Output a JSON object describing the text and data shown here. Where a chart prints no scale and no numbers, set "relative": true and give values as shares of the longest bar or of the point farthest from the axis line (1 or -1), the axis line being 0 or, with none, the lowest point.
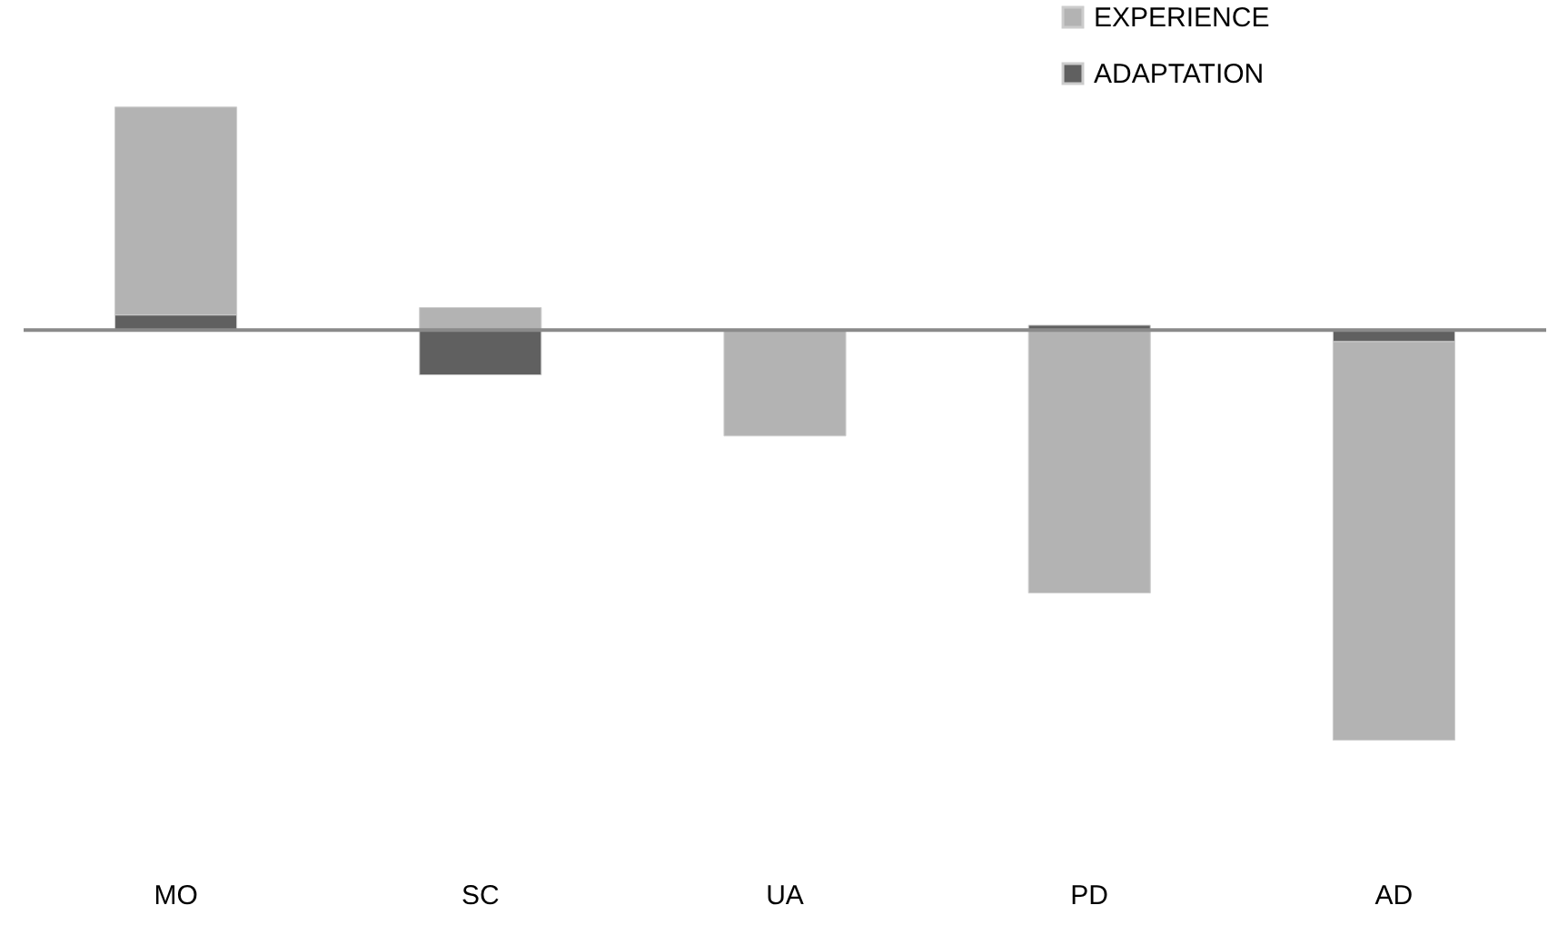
{
  "chart_data": {
    "type": "bar",
    "relative": true,
    "stacked": true,
    "legend": "top right",
    "categories": [
      "MO",
      "SC",
      "UA",
      "PD",
      "AD"
    ],
    "series": [
      {
        "name": "ADAPTATION",
        "color": "#606060",
        "values": [
          0.037,
          -0.109,
          null,
          0.012,
          -0.028
        ]
      },
      {
        "name": "EXPERIENCE",
        "color": "#b3b3b3",
        "values": [
          0.507,
          0.055,
          -0.258,
          -0.641,
          -0.972
        ]
      }
    ]
  }
}
